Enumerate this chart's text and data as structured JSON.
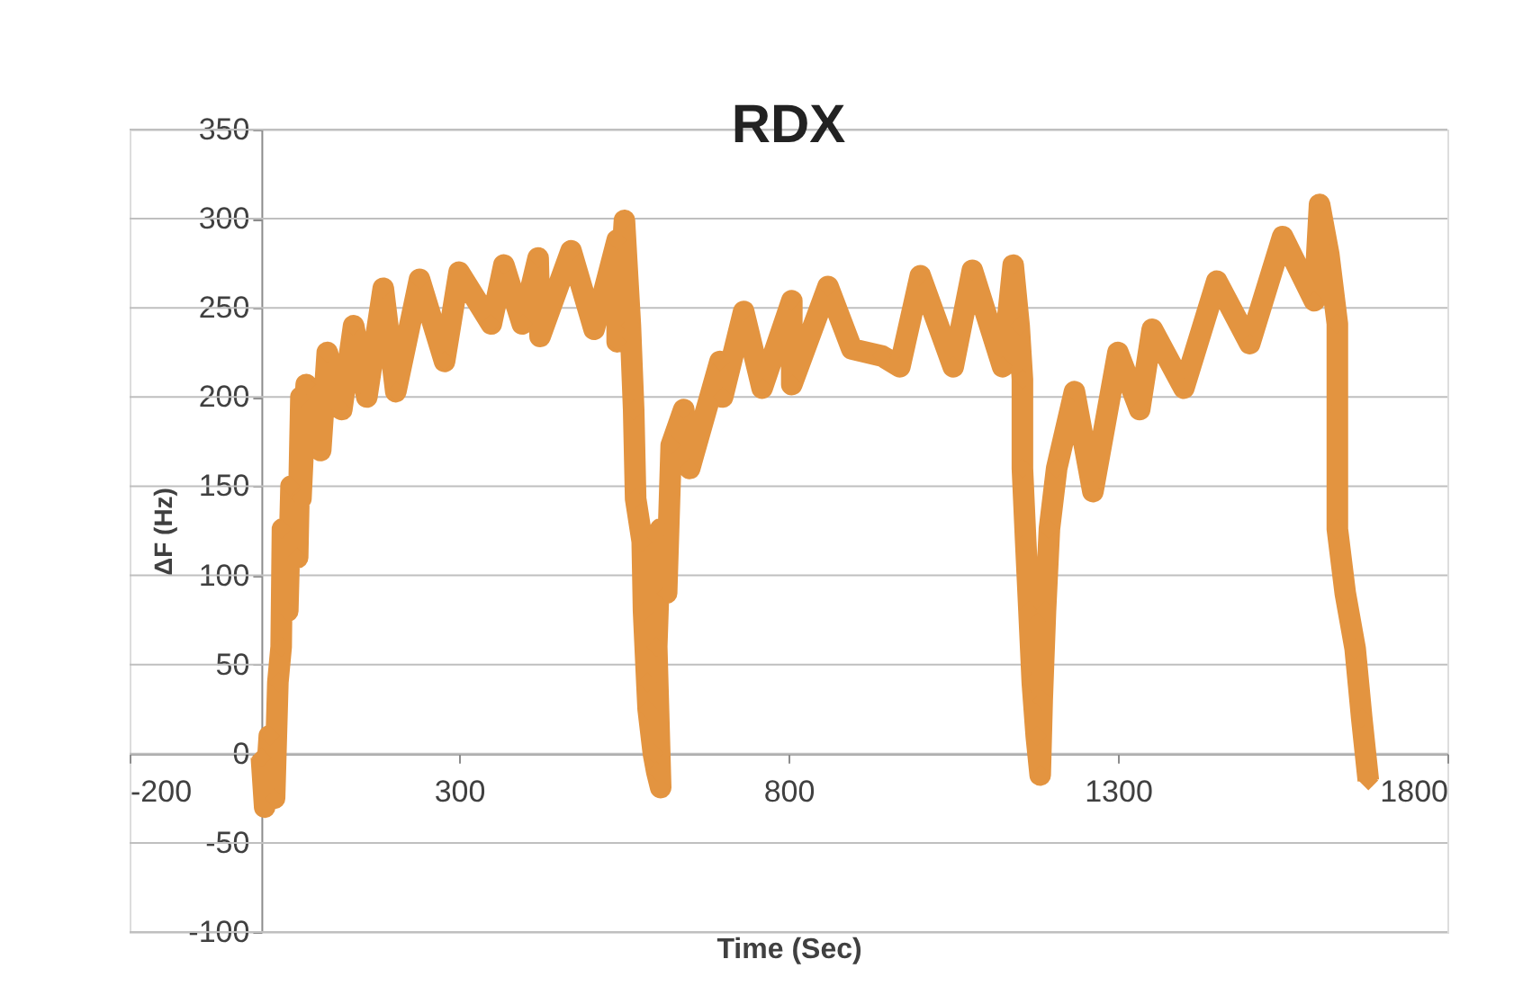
{
  "chart_data": {
    "type": "line",
    "title": "RDX",
    "xlabel": "Time (Sec)",
    "ylabel": "ΔF (Hz)",
    "xlim": [
      -200,
      1800
    ],
    "xticks": [
      -200,
      300,
      800,
      {
        "value": 1300,
        "label": "1300"
      },
      {
        "value": 1800,
        "label": "1800"
      }
    ],
    "ylim": [
      -100,
      350
    ],
    "yticks": [
      -100,
      -50,
      0,
      50,
      100,
      150,
      200,
      250,
      300,
      350
    ],
    "grid": "y",
    "marker": "diamond",
    "line_style": "solid",
    "series": [
      {
        "color": "#e39440",
        "x": [
          0,
          5,
          12,
          20,
          25,
          30,
          32,
          40,
          45,
          55,
          60,
          60,
          68,
          90,
          100,
          122,
          140,
          160,
          185,
          204,
          240,
          278,
          300,
          349,
          368,
          396,
          420,
          423,
          470,
          505,
          540,
          540,
          551,
          560,
          565,
          568,
          578,
          580,
          585,
          587,
          595,
          600,
          606,
          600,
          606,
          615,
          622,
          641,
          650,
          696,
          700,
          732,
          760,
          805,
          805,
          860,
          896,
          942,
          969,
          1000,
          1050,
          1079,
          1125,
          1141,
          1150,
          1155,
          1155,
          1160,
          1165,
          1170,
          1176,
          1182,
          1185,
          1190,
          1196,
          1207,
          1234,
          1262,
          1300,
          1333,
          1352,
          1400,
          1450,
          1500,
          1550,
          1598,
          1606,
          1620,
          1633,
          1633,
          1633,
          1645,
          1660,
          1670,
          1680
        ],
        "values": [
          -2,
          -30,
          10,
          -25,
          40,
          60,
          126,
          80,
          150,
          110,
          200,
          143,
          207,
          170,
          225,
          193,
          240,
          200,
          261,
          203,
          266,
          220,
          270,
          241,
          274,
          241,
          278,
          234,
          282,
          238,
          288,
          231,
          299,
          240,
          193,
          143,
          119,
          80,
          40,
          25,
          0,
          -10,
          -19,
          60,
          126,
          90,
          173,
          193,
          160,
          220,
          200,
          248,
          205,
          254,
          207,
          262,
          227,
          223,
          217,
          268,
          217,
          271,
          217,
          274,
          240,
          210,
          160,
          119,
          80,
          40,
          10,
          -12,
          30,
          80,
          126,
          160,
          203,
          147,
          225,
          193,
          238,
          205,
          265,
          230,
          290,
          254,
          308,
          280,
          241,
          193,
          126,
          90,
          59,
          20,
          -15
        ]
      }
    ]
  }
}
